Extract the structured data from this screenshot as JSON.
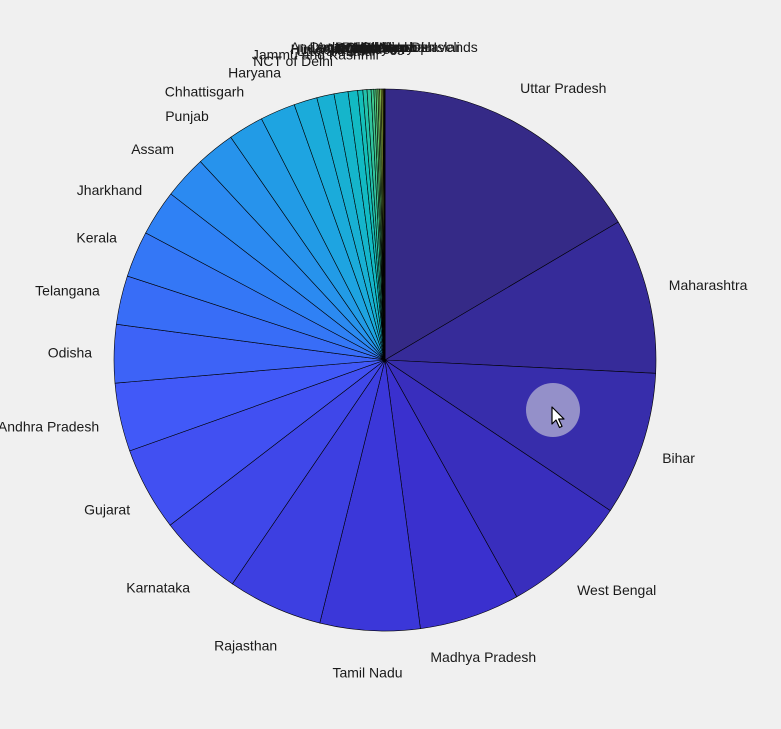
{
  "chart_data": {
    "type": "pie",
    "title": "",
    "legend": "none",
    "start": "top",
    "direction": "clockwise",
    "colormap": "parula",
    "slices": [
      {
        "label": "Uttar Pradesh",
        "value": 199.8
      },
      {
        "label": "Maharashtra",
        "value": 112.4
      },
      {
        "label": "Bihar",
        "value": 104.1
      },
      {
        "label": "West Bengal",
        "value": 91.3
      },
      {
        "label": "Madhya Pradesh",
        "value": 72.6
      },
      {
        "label": "Tamil Nadu",
        "value": 72.1
      },
      {
        "label": "Rajasthan",
        "value": 68.5
      },
      {
        "label": "Karnataka",
        "value": 61.1
      },
      {
        "label": "Gujarat",
        "value": 60.4
      },
      {
        "label": "Andhra Pradesh",
        "value": 49.4
      },
      {
        "label": "Odisha",
        "value": 42.0
      },
      {
        "label": "Telangana",
        "value": 35.2
      },
      {
        "label": "Kerala",
        "value": 33.4
      },
      {
        "label": "Jharkhand",
        "value": 33.0
      },
      {
        "label": "Assam",
        "value": 31.2
      },
      {
        "label": "Punjab",
        "value": 27.7
      },
      {
        "label": "Chhattisgarh",
        "value": 25.5
      },
      {
        "label": "Haryana",
        "value": 25.4
      },
      {
        "label": "NCT of Delhi",
        "value": 16.8
      },
      {
        "label": "Jammu and Kashmir",
        "value": 12.5
      },
      {
        "label": "Uttarakhand",
        "value": 10.1
      },
      {
        "label": "Himachal Pradesh",
        "value": 6.9
      },
      {
        "label": "Tripura",
        "value": 3.7
      },
      {
        "label": "Meghalaya",
        "value": 3.0
      },
      {
        "label": "Manipur",
        "value": 2.9
      },
      {
        "label": "Nagaland",
        "value": 2.0
      },
      {
        "label": "Goa",
        "value": 1.5
      },
      {
        "label": "Arunachal Pradesh",
        "value": 1.4
      },
      {
        "label": "Puducherry",
        "value": 1.2
      },
      {
        "label": "Mizoram",
        "value": 1.1
      },
      {
        "label": "Chandigarh",
        "value": 1.1
      },
      {
        "label": "Sikkim",
        "value": 0.6
      },
      {
        "label": "Daman and Diu",
        "value": 0.24
      },
      {
        "label": "Andaman and Nicobar Islands",
        "value": 0.38
      },
      {
        "label": "Dadra and Nagar Haveli",
        "value": 0.34
      },
      {
        "label": "Lakshadweep",
        "value": 0.06
      }
    ]
  }
}
